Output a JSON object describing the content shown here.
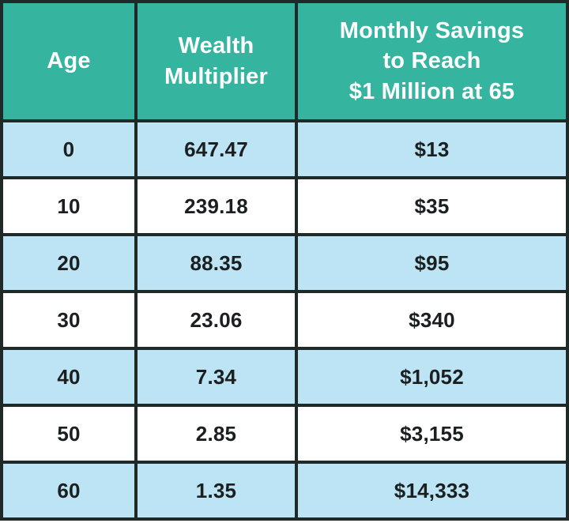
{
  "colors": {
    "header_bg": "#35b5a0",
    "header_text": "#ffffff",
    "row_alt_bg": "#bde4f4",
    "row_bg": "#ffffff",
    "body_text": "#1b1f20",
    "border": "#1f2928"
  },
  "table": {
    "columns": [
      {
        "key": "age",
        "label": "Age"
      },
      {
        "key": "multiplier",
        "label": "Wealth\nMultiplier"
      },
      {
        "key": "savings",
        "label": "Monthly Savings\nto Reach\n$1 Million at 65"
      }
    ],
    "rows": [
      {
        "age": "0",
        "multiplier": "647.47",
        "savings": "$13"
      },
      {
        "age": "10",
        "multiplier": "239.18",
        "savings": "$35"
      },
      {
        "age": "20",
        "multiplier": "88.35",
        "savings": "$95"
      },
      {
        "age": "30",
        "multiplier": "23.06",
        "savings": "$340"
      },
      {
        "age": "40",
        "multiplier": "7.34",
        "savings": "$1,052"
      },
      {
        "age": "50",
        "multiplier": "2.85",
        "savings": "$3,155"
      },
      {
        "age": "60",
        "multiplier": "1.35",
        "savings": "$14,333"
      }
    ]
  },
  "chart_data": {
    "type": "table",
    "title": "",
    "columns": [
      "Age",
      "Wealth Multiplier",
      "Monthly Savings to Reach $1 Million at 65"
    ],
    "rows": [
      [
        0,
        647.47,
        "$13"
      ],
      [
        10,
        239.18,
        "$35"
      ],
      [
        20,
        88.35,
        "$95"
      ],
      [
        30,
        23.06,
        "$340"
      ],
      [
        40,
        7.34,
        "$1,052"
      ],
      [
        50,
        2.85,
        "$3,155"
      ],
      [
        60,
        1.35,
        "$14,333"
      ]
    ],
    "layout_hints": {
      "header_style": "teal background, white bold text",
      "row_striping": "even rows light blue, odd rows white, starting with blue",
      "alignment": "center",
      "grid": "on"
    }
  }
}
